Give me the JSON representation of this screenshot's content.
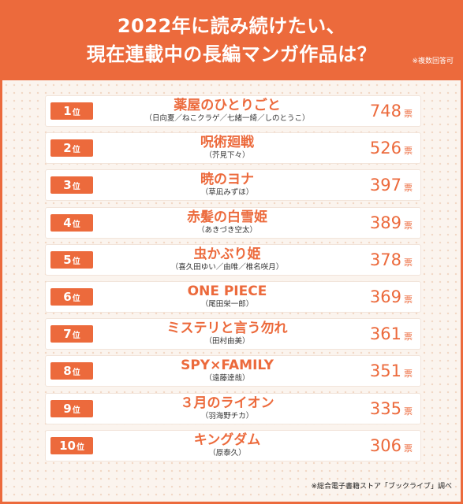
{
  "header": {
    "title_line1": "2022年に読み続けたい、",
    "title_line2": "現在連載中の長編マンガ作品は？",
    "note": "※複数回答可"
  },
  "rank_suffix": "位",
  "vote_unit": "票",
  "rankings": [
    {
      "rank": "1",
      "title": "薬屋のひとりごと",
      "author": "（日向夏／ねこクラゲ／七緒一綺／しのとうこ）",
      "votes": "748"
    },
    {
      "rank": "2",
      "title": "呪術廻戦",
      "author": "（芥見下々）",
      "votes": "526"
    },
    {
      "rank": "3",
      "title": "暁のヨナ",
      "author": "（草凪みずほ）",
      "votes": "397"
    },
    {
      "rank": "4",
      "title": "赤髪の白雪姫",
      "author": "（あきづき空太）",
      "votes": "389"
    },
    {
      "rank": "5",
      "title": "虫かぶり姫",
      "author": "（喜久田ゆい／由唯／椎名咲月）",
      "votes": "378"
    },
    {
      "rank": "6",
      "title": "ONE PIECE",
      "author": "（尾田栄一郎）",
      "votes": "369"
    },
    {
      "rank": "7",
      "title": "ミステリと言う勿れ",
      "author": "（田村由美）",
      "votes": "361"
    },
    {
      "rank": "8",
      "title": "SPY×FAMILY",
      "author": "（遠藤達哉）",
      "votes": "351"
    },
    {
      "rank": "9",
      "title": "３月のライオン",
      "author": "（羽海野チカ）",
      "votes": "335"
    },
    {
      "rank": "10",
      "title": "キングダム",
      "author": "（原泰久）",
      "votes": "306"
    }
  ],
  "source": "※総合電子書籍ストア「ブックライブ」調べ",
  "colors": {
    "accent": "#ec6a3c",
    "background": "#fbf4ee"
  }
}
